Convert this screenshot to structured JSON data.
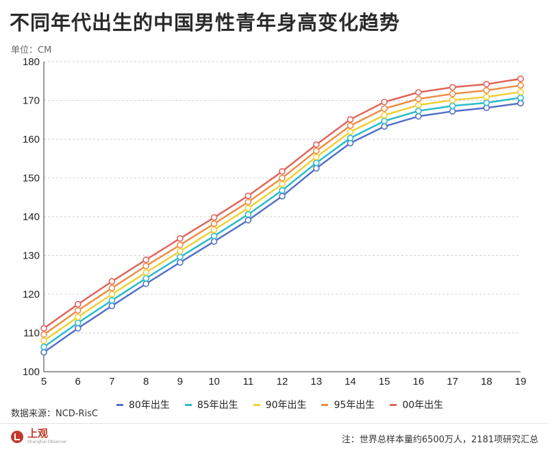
{
  "title": "不同年代出生的中国男性青年身高变化趋势",
  "unit_label": "单位：CM",
  "source": "数据来源：NCD-RisC",
  "note": "注：世界总样本量约6500万人，2181项研究汇总",
  "logo": {
    "cn": "上观",
    "en": "Shanghai Observer"
  },
  "chart_data": {
    "type": "line",
    "x": [
      5,
      6,
      7,
      8,
      9,
      10,
      11,
      12,
      13,
      14,
      15,
      16,
      17,
      18,
      19
    ],
    "xlim": [
      5,
      19
    ],
    "ylim": [
      100,
      180
    ],
    "yticks": [
      100,
      110,
      120,
      130,
      140,
      150,
      160,
      170,
      180
    ],
    "grid": true,
    "legend_position": "bottom",
    "series": [
      {
        "name": "80年出生",
        "color": "#5470c6",
        "values": [
          105.0,
          111.2,
          117.0,
          122.7,
          128.2,
          133.6,
          139.1,
          145.3,
          152.5,
          159.0,
          163.3,
          165.9,
          167.2,
          168.1,
          169.3
        ]
      },
      {
        "name": "85年出生",
        "color": "#2bbbc9",
        "values": [
          106.4,
          112.6,
          118.4,
          124.1,
          129.6,
          135.0,
          140.6,
          146.8,
          153.9,
          160.3,
          164.7,
          167.3,
          168.6,
          169.4,
          170.7
        ]
      },
      {
        "name": "90年出生",
        "color": "#f2cf36",
        "values": [
          108.0,
          114.1,
          120.0,
          125.6,
          131.1,
          136.6,
          142.2,
          148.4,
          155.4,
          161.9,
          166.2,
          168.8,
          170.1,
          170.9,
          172.2
        ]
      },
      {
        "name": "95年出生",
        "color": "#ef8c45",
        "values": [
          109.6,
          115.8,
          121.6,
          127.3,
          132.7,
          138.2,
          143.8,
          150.0,
          157.0,
          163.5,
          167.9,
          170.4,
          171.7,
          172.6,
          173.9
        ]
      },
      {
        "name": "00年出生",
        "color": "#e0645c",
        "values": [
          111.2,
          117.4,
          123.3,
          128.9,
          134.4,
          139.8,
          145.4,
          151.7,
          158.6,
          165.1,
          169.6,
          172.1,
          173.4,
          174.2,
          175.6
        ]
      }
    ]
  }
}
